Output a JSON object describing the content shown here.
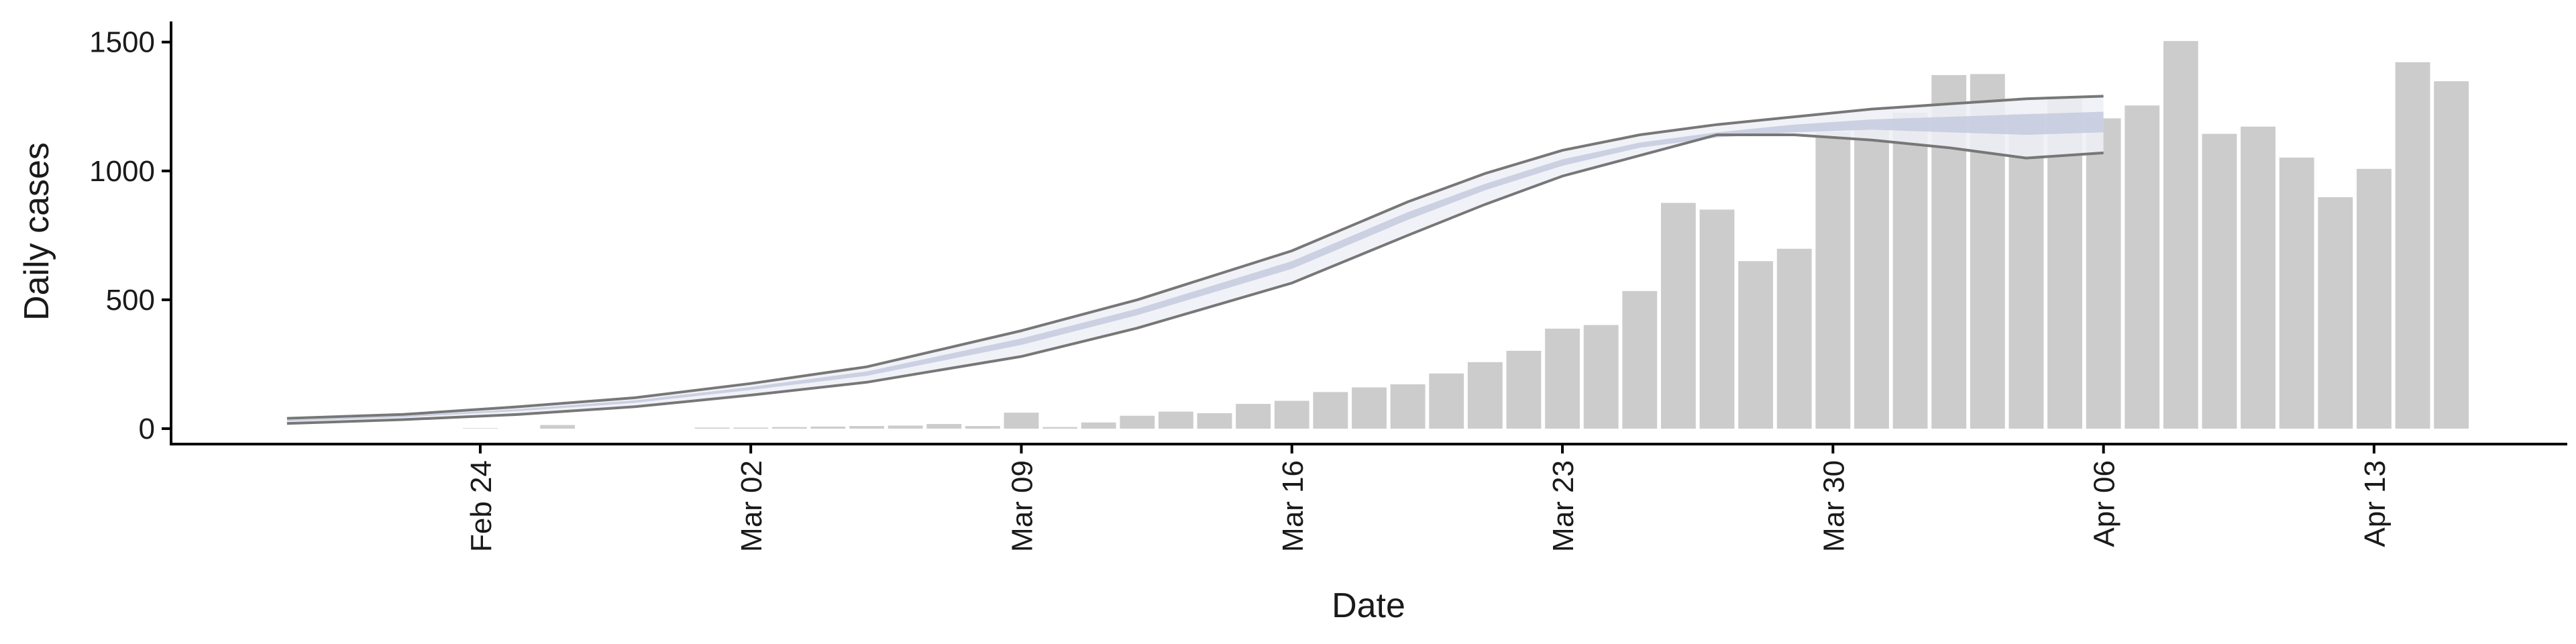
{
  "chart_data": {
    "type": "bar",
    "title": "",
    "xlabel": "Date",
    "ylabel": "Daily cases",
    "ylim": [
      -60,
      1580
    ],
    "xlim": [
      "2020-02-16",
      "2020-04-18"
    ],
    "yticks": [
      0,
      500,
      1000,
      1500
    ],
    "xticks": [
      {
        "date": "2020-02-24",
        "label": "Feb 24"
      },
      {
        "date": "2020-03-02",
        "label": "Mar 02"
      },
      {
        "date": "2020-03-09",
        "label": "Mar 09"
      },
      {
        "date": "2020-03-16",
        "label": "Mar 16"
      },
      {
        "date": "2020-03-23",
        "label": "Mar 23"
      },
      {
        "date": "2020-03-30",
        "label": "Mar 30"
      },
      {
        "date": "2020-04-06",
        "label": "Apr 06"
      },
      {
        "date": "2020-04-13",
        "label": "Apr 13"
      }
    ],
    "grid": false,
    "legend": "none",
    "bars": {
      "color": "#cccccc",
      "start_date": "2020-02-24",
      "values": [
        2,
        0,
        14,
        0,
        0,
        0,
        4,
        4,
        6,
        8,
        10,
        12,
        18,
        10,
        62,
        6,
        24,
        50,
        66,
        60,
        96,
        108,
        142,
        160,
        172,
        214,
        258,
        302,
        388,
        402,
        534,
        876,
        850,
        650,
        698,
        1152,
        1160,
        1226,
        1372,
        1376,
        1222,
        1280,
        1204,
        1254,
        1504,
        1144,
        1172,
        1052,
        898,
        1008,
        1422,
        1348
      ]
    },
    "estimate": {
      "outer_band_color": "#eef0f6",
      "inner_band_color": "#c6ccdf",
      "bound_color": "#777777",
      "x": [
        "2020-02-19",
        "2020-02-22",
        "2020-02-25",
        "2020-02-28",
        "2020-03-02",
        "2020-03-05",
        "2020-03-09",
        "2020-03-12",
        "2020-03-16",
        "2020-03-19",
        "2020-03-21",
        "2020-03-23",
        "2020-03-25",
        "2020-03-27",
        "2020-03-29",
        "2020-03-31",
        "2020-04-02",
        "2020-04-04",
        "2020-04-06"
      ],
      "lower": [
        20,
        35,
        55,
        85,
        130,
        180,
        280,
        390,
        565,
        750,
        870,
        980,
        1060,
        1140,
        1140,
        1120,
        1090,
        1050,
        1070
      ],
      "upper": [
        40,
        55,
        85,
        120,
        175,
        240,
        380,
        500,
        690,
        880,
        990,
        1080,
        1140,
        1180,
        1210,
        1240,
        1260,
        1280,
        1290
      ],
      "inner_lower": [
        28,
        44,
        68,
        100,
        150,
        205,
        325,
        440,
        620,
        810,
        925,
        1020,
        1090,
        1130,
        1150,
        1160,
        1150,
        1140,
        1150
      ],
      "inner_upper": [
        33,
        50,
        76,
        110,
        162,
        222,
        350,
        465,
        650,
        840,
        950,
        1045,
        1110,
        1150,
        1180,
        1200,
        1210,
        1220,
        1230
      ]
    }
  }
}
